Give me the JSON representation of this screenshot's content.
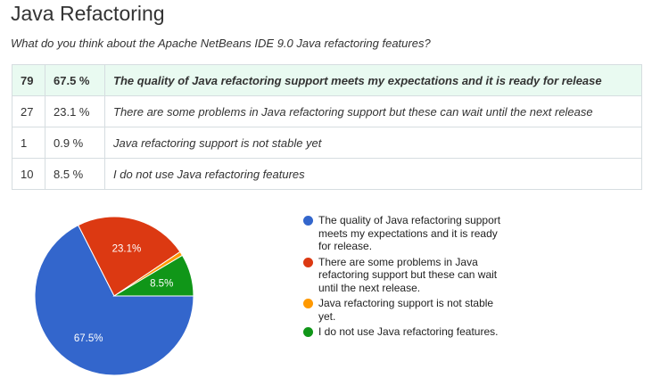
{
  "title": "Java Refactoring",
  "question": "What do you think about the Apache NetBeans IDE 9.0 Java refactoring features?",
  "rows": [
    {
      "count": "79",
      "percent": "67.5 %",
      "answer": "The quality of Java refactoring support meets my expectations and it is ready for release",
      "highlighted": true
    },
    {
      "count": "27",
      "percent": "23.1 %",
      "answer": "There are some problems in Java refactoring support but these can wait until the next release"
    },
    {
      "count": "1",
      "percent": "0.9 %",
      "answer": "Java refactoring support is not stable yet"
    },
    {
      "count": "10",
      "percent": "8.5 %",
      "answer": "I do not use Java refactoring features"
    }
  ],
  "chart_data": {
    "type": "pie",
    "categories": [
      "The quality of Java refactoring support meets my expectations and it is ready for release.",
      "There are some problems in Java refactoring support but these can wait until the next release.",
      "Java refactoring support is not stable yet.",
      "I do not use Java refactoring features."
    ],
    "values": [
      79,
      27,
      1,
      10
    ],
    "slice_labels": [
      "67.5%",
      "23.1%",
      "",
      "8.5%"
    ],
    "colors": [
      "#3366cc",
      "#dc3912",
      "#ff9900",
      "#109618"
    ],
    "legend_position": "right"
  }
}
